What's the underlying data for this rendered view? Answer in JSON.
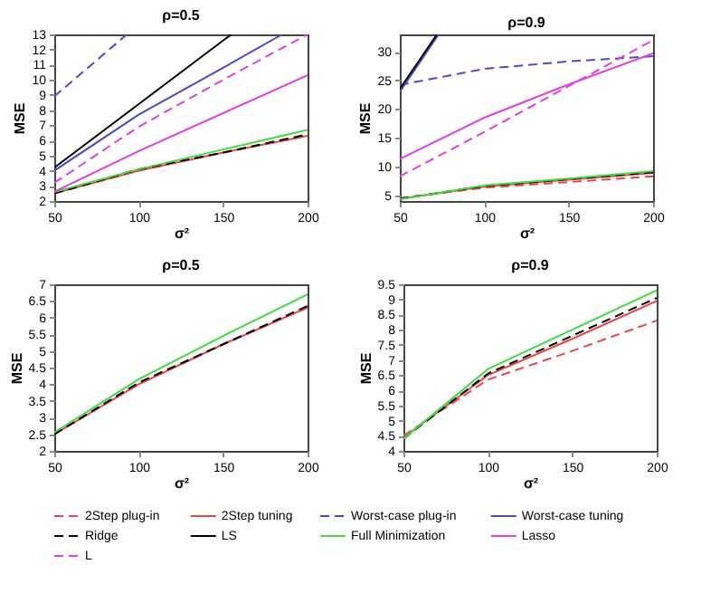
{
  "chart_data": [
    {
      "type": "line",
      "title": "ρ=0.5",
      "xlabel": "σ²",
      "ylabel": "MSE",
      "x": [
        50,
        100,
        150,
        200
      ],
      "xlim": [
        50,
        200
      ],
      "xticks": [
        50,
        100,
        150,
        200
      ],
      "ylim": [
        2,
        13
      ],
      "yticks": [
        2,
        3,
        4,
        5,
        6,
        7,
        8,
        9,
        10,
        11,
        12,
        13
      ],
      "legend": "bottom",
      "series": [
        {
          "name": "2Step plug-in",
          "color": "#e8464d",
          "line_style": "dashed",
          "values": [
            2.5,
            4.0,
            5.2,
            6.3
          ]
        },
        {
          "name": "2Step tuning",
          "color": "#e8464d",
          "line_style": "solid",
          "values": [
            2.5,
            4.0,
            5.2,
            6.3
          ]
        },
        {
          "name": "Worst-case plug-in",
          "color": "#4a4ac8",
          "line_style": "dashed",
          "x": [
            50,
            93
          ],
          "values": [
            8.9,
            13
          ]
        },
        {
          "name": "Worst-case tuning",
          "color": "#4a4ac8",
          "line_style": "solid",
          "x": [
            50,
            100,
            150,
            185
          ],
          "values": [
            4.0,
            7.7,
            10.8,
            13
          ]
        },
        {
          "name": "Ridge",
          "color": "#000000",
          "line_style": "dashed",
          "values": [
            2.5,
            4.1,
            5.2,
            6.4
          ]
        },
        {
          "name": "LS",
          "color": "#000000",
          "line_style": "solid",
          "x": [
            50,
            100,
            150,
            155
          ],
          "values": [
            4.2,
            8.4,
            12.6,
            13
          ]
        },
        {
          "name": "Full Minimization",
          "color": "#3fdc3f",
          "line_style": "solid",
          "values": [
            2.6,
            4.1,
            5.4,
            6.7
          ]
        },
        {
          "name": "Lasso",
          "color": "#e040e0",
          "line_style": "solid",
          "values": [
            2.6,
            5.3,
            7.8,
            10.3
          ]
        },
        {
          "name": "L",
          "color": "#e040e0",
          "line_style": "dashed",
          "values": [
            3.2,
            6.9,
            10.0,
            13.0
          ]
        }
      ]
    },
    {
      "type": "line",
      "title": "ρ=0.9",
      "xlabel": "σ²",
      "ylabel": "MSE",
      "x": [
        50,
        100,
        150,
        200
      ],
      "xlim": [
        50,
        200
      ],
      "xticks": [
        50,
        100,
        150,
        200
      ],
      "ylim": [
        4,
        33
      ],
      "yticks": [
        5,
        10,
        15,
        20,
        25,
        30
      ],
      "legend": "bottom",
      "series": [
        {
          "name": "2Step plug-in",
          "color": "#e8464d",
          "line_style": "dashed",
          "values": [
            4.5,
            6.3,
            7.3,
            8.3
          ]
        },
        {
          "name": "2Step tuning",
          "color": "#e8464d",
          "line_style": "solid",
          "values": [
            4.4,
            6.5,
            7.7,
            8.9
          ]
        },
        {
          "name": "Worst-case plug-in",
          "color": "#4a4ac8",
          "line_style": "dashed",
          "values": [
            24.2,
            27.0,
            28.3,
            29.2
          ]
        },
        {
          "name": "Worst-case tuning",
          "color": "#4a4ac8",
          "line_style": "solid",
          "x": [
            50,
            73
          ],
          "values": [
            23.0,
            33
          ]
        },
        {
          "name": "Ridge",
          "color": "#000000",
          "line_style": "dashed",
          "values": [
            4.4,
            6.6,
            7.8,
            9.0
          ]
        },
        {
          "name": "LS",
          "color": "#000000",
          "line_style": "solid",
          "x": [
            50,
            72
          ],
          "values": [
            23.5,
            33
          ]
        },
        {
          "name": "Full Minimization",
          "color": "#3fdc3f",
          "line_style": "solid",
          "values": [
            4.3,
            6.7,
            7.9,
            9.2
          ]
        },
        {
          "name": "Lasso",
          "color": "#e040e0",
          "line_style": "solid",
          "values": [
            11.3,
            18.5,
            24.3,
            29.7
          ]
        },
        {
          "name": "L",
          "color": "#e040e0",
          "line_style": "dashed",
          "values": [
            8.3,
            16.0,
            24.0,
            32.0
          ]
        }
      ]
    },
    {
      "type": "line",
      "title": "ρ=0.5",
      "xlabel": "σ²",
      "ylabel": "MSE",
      "x": [
        50,
        100,
        150,
        200
      ],
      "xlim": [
        50,
        200
      ],
      "xticks": [
        50,
        100,
        150,
        200
      ],
      "ylim": [
        2,
        7
      ],
      "yticks": [
        2,
        2.5,
        3,
        3.5,
        4,
        4.5,
        5,
        5.5,
        6,
        6.5,
        7
      ],
      "legend": "bottom",
      "series": [
        {
          "name": "2Step plug-in",
          "color": "#e8464d",
          "line_style": "dashed",
          "values": [
            2.5,
            4.0,
            5.2,
            6.3
          ]
        },
        {
          "name": "2Step tuning",
          "color": "#e8464d",
          "line_style": "solid",
          "values": [
            2.5,
            4.0,
            5.2,
            6.3
          ]
        },
        {
          "name": "Ridge",
          "color": "#000000",
          "line_style": "dashed",
          "values": [
            2.5,
            4.05,
            5.2,
            6.35
          ]
        },
        {
          "name": "Full Minimization",
          "color": "#3fdc3f",
          "line_style": "solid",
          "values": [
            2.55,
            4.15,
            5.45,
            6.7
          ]
        }
      ]
    },
    {
      "type": "line",
      "title": "ρ=0.9",
      "xlabel": "σ²",
      "ylabel": "MSE",
      "x": [
        50,
        100,
        150,
        200
      ],
      "xlim": [
        50,
        200
      ],
      "xticks": [
        50,
        100,
        150,
        200
      ],
      "ylim": [
        4,
        9.5
      ],
      "yticks": [
        4,
        4.5,
        5,
        5.5,
        6,
        6.5,
        7,
        7.5,
        8,
        8.5,
        9,
        9.5
      ],
      "legend": "bottom",
      "series": [
        {
          "name": "2Step plug-in",
          "color": "#e8464d",
          "line_style": "dashed",
          "values": [
            4.5,
            6.35,
            7.3,
            8.3
          ]
        },
        {
          "name": "2Step tuning",
          "color": "#e8464d",
          "line_style": "solid",
          "values": [
            4.45,
            6.5,
            7.7,
            8.95
          ]
        },
        {
          "name": "Ridge",
          "color": "#000000",
          "line_style": "dashed",
          "values": [
            4.4,
            6.55,
            7.8,
            9.05
          ]
        },
        {
          "name": "Full Minimization",
          "color": "#3fdc3f",
          "line_style": "solid",
          "values": [
            4.4,
            6.7,
            8.0,
            9.3
          ]
        }
      ]
    }
  ]
}
